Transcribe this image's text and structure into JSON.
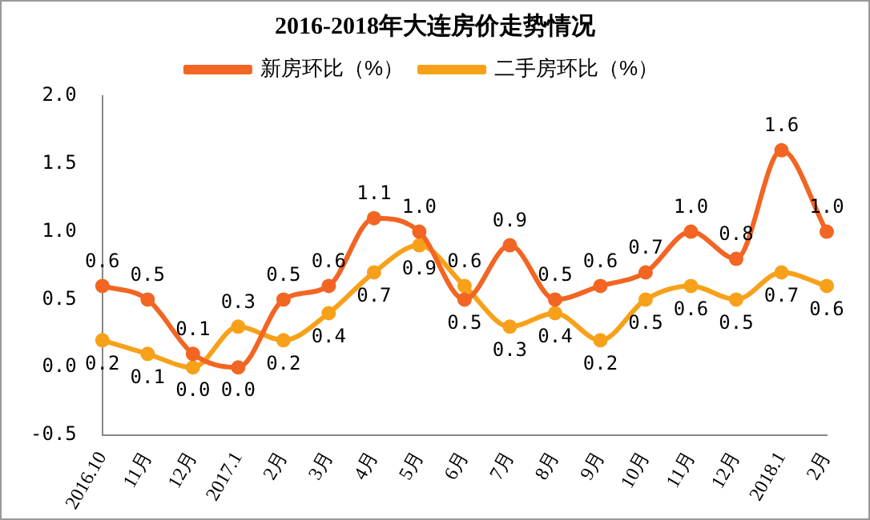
{
  "chart_data": {
    "type": "line",
    "title": "2016-2018年大连房价走势情况",
    "categories": [
      "2016.10",
      "11月",
      "12月",
      "2017.1",
      "2月",
      "3月",
      "4月",
      "5月",
      "6月",
      "7月",
      "8月",
      "9月",
      "10月",
      "11月",
      "12月",
      "2018.1",
      "2月"
    ],
    "series": [
      {
        "name": "新房环比（%）",
        "color": "#f26522",
        "values": [
          0.6,
          0.5,
          0.1,
          0.0,
          0.5,
          0.6,
          1.1,
          1.0,
          0.5,
          0.9,
          0.5,
          0.6,
          0.7,
          1.0,
          0.8,
          1.6,
          1.0
        ],
        "value_labels": [
          "0.6",
          "0.5",
          "0.1",
          "0.0",
          "0.5",
          "0.6",
          "1.1",
          "1.0",
          "0.5",
          "0.9",
          "0.5",
          "0.6",
          "0.7",
          "1.0",
          "0.8",
          "1.6",
          "1.0"
        ]
      },
      {
        "name": "二手房环比（%）",
        "color": "#f7a11a",
        "values": [
          0.2,
          0.1,
          0.0,
          0.3,
          0.2,
          0.4,
          0.7,
          0.9,
          0.6,
          0.3,
          0.4,
          0.2,
          0.5,
          0.6,
          0.5,
          0.7,
          0.6
        ],
        "value_labels": [
          "0.2",
          "0.1",
          "0.0",
          "0.3",
          "0.2",
          "0.4",
          "0.7",
          "0.9",
          "0.6",
          "0.3",
          "0.4",
          "0.2",
          "0.5",
          "0.6",
          "0.5",
          "0.7",
          "0.6"
        ]
      }
    ],
    "ylim": [
      -0.5,
      2.0
    ],
    "yticks": [
      -0.5,
      {
        "value": 0,
        "label": "0.0"
      },
      0.5,
      {
        "value": 1,
        "label": "1.0"
      },
      1.5,
      {
        "value": 2,
        "label": "2.0"
      }
    ],
    "grid": false,
    "legend": "top",
    "marker": "circle",
    "line_style": "solid"
  }
}
